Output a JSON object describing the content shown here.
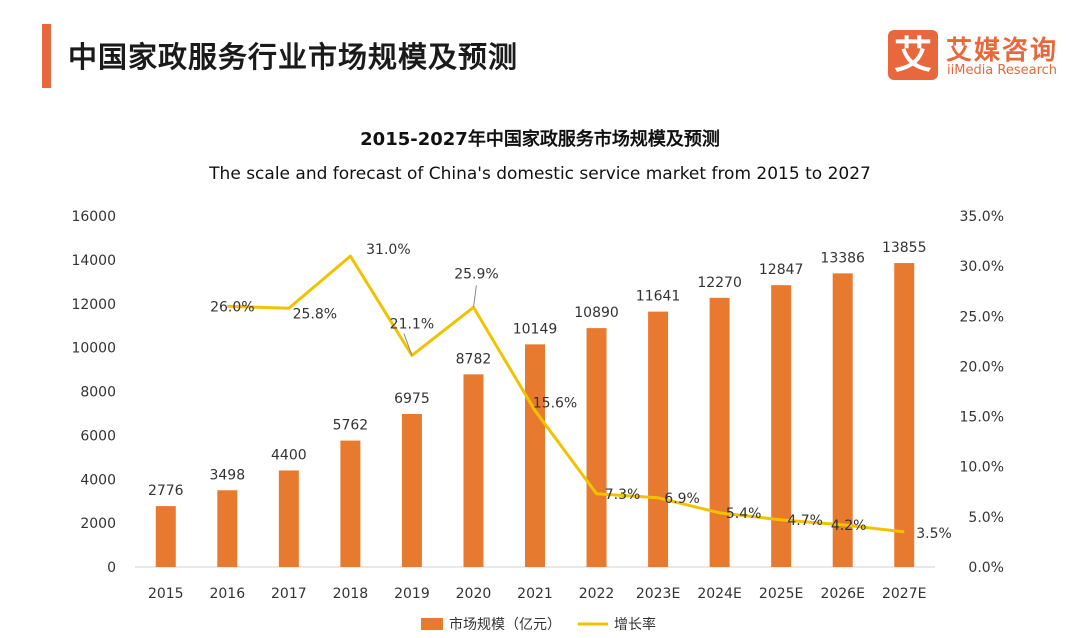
{
  "header": {
    "title": "中国家政服务行业市场规模及预测",
    "accent_color": "#e8673c"
  },
  "logo": {
    "mark": "艾",
    "name_cn": "艾媒咨询",
    "name_en": "iiMedia Research",
    "color": "#e8673c"
  },
  "chart_data": {
    "type": "bar",
    "title": "2015-2027年中国家政服务市场规模及预测",
    "subtitle": "The scale and forecast of China's domestic service market from 2015 to 2027",
    "categories": [
      "2015",
      "2016",
      "2017",
      "2018",
      "2019",
      "2020",
      "2021",
      "2022",
      "2023E",
      "2024E",
      "2025E",
      "2026E",
      "2027E"
    ],
    "series": [
      {
        "name": "市场规模（亿元）",
        "type": "bar",
        "axis": "left",
        "color": "#e87a30",
        "values": [
          2776,
          3498,
          4400,
          5762,
          6975,
          8782,
          10149,
          10890,
          11641,
          12270,
          12847,
          13386,
          13855
        ]
      },
      {
        "name": "增长率",
        "type": "line",
        "axis": "right",
        "color": "#f2c200",
        "values": [
          null,
          26.0,
          25.8,
          31.0,
          21.1,
          25.9,
          15.6,
          7.3,
          6.9,
          5.4,
          4.7,
          4.2,
          3.5
        ],
        "labels": [
          "",
          "26.0%",
          "25.8%",
          "31.0%",
          "21.1%",
          "25.9%",
          "15.6%",
          "7.3%",
          "6.9%",
          "5.4%",
          "4.7%",
          "4.2%",
          "3.5%"
        ]
      }
    ],
    "y_left": {
      "min": 0,
      "max": 16000,
      "ticks": [
        "0",
        "2000",
        "4000",
        "6000",
        "8000",
        "10000",
        "12000",
        "14000",
        "16000"
      ]
    },
    "y_right": {
      "min": 0,
      "max": 35,
      "ticks": [
        "0.0%",
        "5.0%",
        "10.0%",
        "15.0%",
        "20.0%",
        "25.0%",
        "30.0%",
        "35.0%"
      ]
    },
    "grid": false,
    "legend_position": "bottom"
  }
}
